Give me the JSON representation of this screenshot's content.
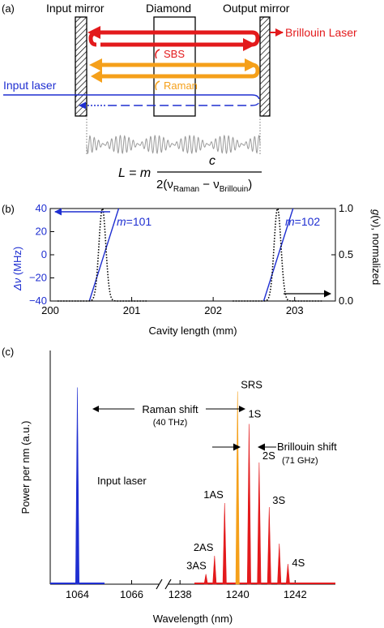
{
  "panel_a": {
    "label": "(a)",
    "input_mirror": "Input mirror",
    "diamond": "Diamond",
    "output_mirror": "Output mirror",
    "brillouin_laser": "Brillouin Laser",
    "sbs": "SBS",
    "raman": "Raman",
    "input_laser": "Input laser",
    "colors": {
      "brillouin": "#e31a1c",
      "raman": "#f5a01a",
      "input": "#1f2fd1",
      "wave": "#9a9a9a"
    },
    "equation": {
      "lhs": "L = m",
      "numerator": "c",
      "denominator_prefix": "2(ν",
      "sub1": "Raman",
      "minus": " − ν",
      "sub2": "Brillouin",
      "suffix": ")"
    }
  },
  "panel_b": {
    "label": "(b)",
    "xlabel": "Cavity length (mm)",
    "ylabel_left_sym": "Δν",
    "ylabel_left_unit": " (MHz)",
    "ylabel_right_sym": "g",
    "ylabel_right_rest": "(ν), normalized",
    "m_labels": [
      {
        "prefix": "m",
        "value": "=101"
      },
      {
        "prefix": "m",
        "value": "=102"
      }
    ]
  },
  "panel_c": {
    "label": "(c)",
    "ylabel": "Power per nm (a.u.)",
    "xlabel": "Wavelength (nm)",
    "input_laser": "Input laser",
    "raman_shift": "Raman shift",
    "raman_shift_value": "(40 THz)",
    "brillouin_shift": "Brillouin shift",
    "brillouin_shift_value": "(71 GHz)"
  },
  "chart_data": [
    {
      "type": "line",
      "panel": "b",
      "xlabel": "Cavity length (mm)",
      "ylabel": "Δν (MHz)",
      "y2label": "g(ν), normalized",
      "xlim": [
        200,
        203.5
      ],
      "ylim": [
        -40,
        40
      ],
      "y2lim": [
        0,
        1.0
      ],
      "x_ticks": [
        "200",
        "201",
        "202",
        "203"
      ],
      "y_ticks": [
        "40",
        "20",
        "0",
        "−20",
        "−40"
      ],
      "y2_ticks": [
        "1.0",
        "0.5",
        "0.0"
      ],
      "series": [
        {
          "name": "m=101",
          "axis": "left",
          "color": "#1f2fd1",
          "style": "solid",
          "x": [
            200.48,
            200.84
          ],
          "y": [
            -40,
            40
          ]
        },
        {
          "name": "m=102",
          "axis": "left",
          "color": "#1f2fd1",
          "style": "solid",
          "x": [
            202.62,
            202.98
          ],
          "y": [
            -40,
            40
          ]
        },
        {
          "name": "",
          "axis": "right",
          "color": "#000000",
          "style": "dotted",
          "center_x": [
            200.64,
            202.79
          ],
          "width": 0.06
        }
      ]
    },
    {
      "type": "line",
      "panel": "c",
      "xlabel": "Wavelength (nm)",
      "ylabel": "Power per nm (a.u.)",
      "segments": [
        {
          "xlim": [
            1063,
            1067
          ],
          "x_ticks": [
            "1064",
            "1066"
          ]
        },
        {
          "xlim": [
            1237.6,
            1243.4
          ],
          "x_ticks": [
            "1238",
            "1240",
            "1242"
          ]
        }
      ],
      "ylim": [
        0,
        1
      ],
      "series": [
        {
          "name": "Input laser",
          "color": "#1f2fd1",
          "peaks": [
            {
              "x": 1064.0,
              "y": 0.97,
              "label": ""
            }
          ]
        },
        {
          "name": "SRS",
          "color": "#f5a01a",
          "peaks": [
            {
              "x": 1240.0,
              "y": 0.95,
              "label": "SRS"
            }
          ]
        },
        {
          "name": "",
          "color": "#e31a1c",
          "peaks": [
            {
              "x": 1238.9,
              "y": 0.05,
              "label": "3AS"
            },
            {
              "x": 1239.2,
              "y": 0.14,
              "label": "2AS"
            },
            {
              "x": 1239.55,
              "y": 0.4,
              "label": "1AS"
            },
            {
              "x": 1240.4,
              "y": 0.79,
              "label": "1S"
            },
            {
              "x": 1240.75,
              "y": 0.6,
              "label": "2S"
            },
            {
              "x": 1241.1,
              "y": 0.38,
              "label": "3S"
            },
            {
              "x": 1241.45,
              "y": 0.2,
              "label": ""
            },
            {
              "x": 1241.75,
              "y": 0.1,
              "label": "4S"
            }
          ]
        }
      ]
    }
  ]
}
